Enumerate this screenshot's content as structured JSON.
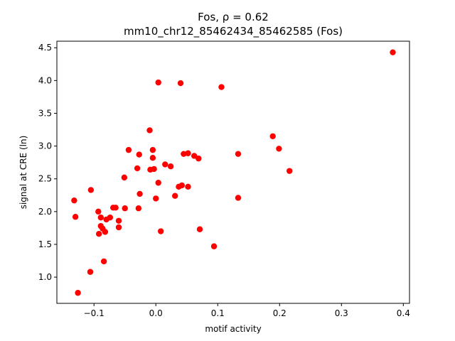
{
  "chart_data": {
    "type": "scatter",
    "title_line1": "Fos, ρ = 0.62",
    "title_line2": "mm10_chr12_85462434_85462585 (Fos)",
    "xlabel": "motif activity",
    "ylabel": "signal at CRE (ln)",
    "xlim": [
      -0.16,
      0.41
    ],
    "ylim": [
      0.6,
      4.6
    ],
    "xticks": [
      -0.1,
      0.0,
      0.1,
      0.2,
      0.3,
      0.4
    ],
    "xtick_labels": [
      "−0.1",
      "0.0",
      "0.1",
      "0.2",
      "0.3",
      "0.4"
    ],
    "yticks": [
      1.0,
      1.5,
      2.0,
      2.5,
      3.0,
      3.5,
      4.0,
      4.5
    ],
    "ytick_labels": [
      "1.0",
      "1.5",
      "2.0",
      "2.5",
      "3.0",
      "3.5",
      "4.0",
      "4.5"
    ],
    "grid": false,
    "marker_color": "#ff0000",
    "points": [
      {
        "x": -0.132,
        "y": 2.17
      },
      {
        "x": -0.13,
        "y": 1.92
      },
      {
        "x": -0.126,
        "y": 0.76
      },
      {
        "x": -0.106,
        "y": 1.08
      },
      {
        "x": -0.105,
        "y": 2.33
      },
      {
        "x": -0.093,
        "y": 2.0
      },
      {
        "x": -0.092,
        "y": 1.66
      },
      {
        "x": -0.089,
        "y": 1.78
      },
      {
        "x": -0.089,
        "y": 1.91
      },
      {
        "x": -0.086,
        "y": 1.74
      },
      {
        "x": -0.084,
        "y": 1.24
      },
      {
        "x": -0.082,
        "y": 1.69
      },
      {
        "x": -0.08,
        "y": 1.88
      },
      {
        "x": -0.074,
        "y": 1.91
      },
      {
        "x": -0.069,
        "y": 2.06
      },
      {
        "x": -0.065,
        "y": 2.06
      },
      {
        "x": -0.06,
        "y": 1.76
      },
      {
        "x": -0.06,
        "y": 1.86
      },
      {
        "x": -0.051,
        "y": 2.52
      },
      {
        "x": -0.05,
        "y": 2.05
      },
      {
        "x": -0.044,
        "y": 2.94
      },
      {
        "x": -0.03,
        "y": 2.66
      },
      {
        "x": -0.028,
        "y": 2.05
      },
      {
        "x": -0.027,
        "y": 2.87
      },
      {
        "x": -0.026,
        "y": 2.27
      },
      {
        "x": -0.01,
        "y": 3.24
      },
      {
        "x": -0.009,
        "y": 2.64
      },
      {
        "x": -0.005,
        "y": 2.94
      },
      {
        "x": -0.005,
        "y": 2.82
      },
      {
        "x": -0.003,
        "y": 2.65
      },
      {
        "x": 0.0,
        "y": 2.2
      },
      {
        "x": 0.004,
        "y": 2.44
      },
      {
        "x": 0.004,
        "y": 3.97
      },
      {
        "x": 0.008,
        "y": 1.7
      },
      {
        "x": 0.015,
        "y": 2.72
      },
      {
        "x": 0.024,
        "y": 2.69
      },
      {
        "x": 0.031,
        "y": 2.24
      },
      {
        "x": 0.037,
        "y": 2.38
      },
      {
        "x": 0.04,
        "y": 3.96
      },
      {
        "x": 0.042,
        "y": 2.4
      },
      {
        "x": 0.045,
        "y": 2.88
      },
      {
        "x": 0.052,
        "y": 2.89
      },
      {
        "x": 0.052,
        "y": 2.38
      },
      {
        "x": 0.062,
        "y": 2.85
      },
      {
        "x": 0.069,
        "y": 2.81
      },
      {
        "x": 0.071,
        "y": 1.73
      },
      {
        "x": 0.094,
        "y": 1.47
      },
      {
        "x": 0.106,
        "y": 3.9
      },
      {
        "x": 0.133,
        "y": 2.88
      },
      {
        "x": 0.133,
        "y": 2.21
      },
      {
        "x": 0.189,
        "y": 3.15
      },
      {
        "x": 0.199,
        "y": 2.96
      },
      {
        "x": 0.216,
        "y": 2.62
      },
      {
        "x": 0.383,
        "y": 4.43
      }
    ]
  }
}
